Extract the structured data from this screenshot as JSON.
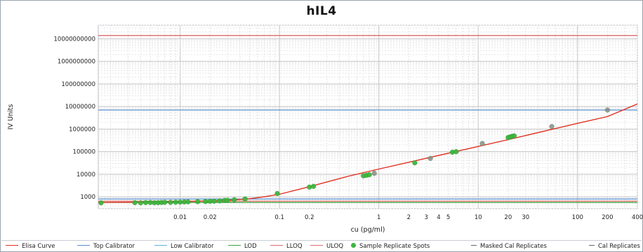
{
  "chart_data": {
    "type": "scatter",
    "title": "hIL4",
    "xlabel": "cu (pg/ml)",
    "ylabel": "IV Units",
    "x_scale": "log",
    "y_scale": "log",
    "xlim": [
      0.0015,
      400
    ],
    "ylim": [
      300,
      40000000000
    ],
    "grid": true,
    "legend_position": "bottom",
    "x_tick_labels": [
      "0.01",
      "0.02",
      "0.1",
      "0.2",
      "1",
      "2",
      "3",
      "4",
      "5",
      "10",
      "20",
      "30",
      "100",
      "200",
      "400"
    ],
    "x_tick_values": [
      0.01,
      0.02,
      0.1,
      0.2,
      1,
      2,
      3,
      4,
      5,
      10,
      20,
      30,
      100,
      200,
      400
    ],
    "y_tick_labels": [
      "1000",
      "10000",
      "100000",
      "1000000",
      "10000000",
      "100000000",
      "1000000000",
      "10000000000"
    ],
    "y_tick_values": [
      1000,
      10000,
      100000,
      1000000,
      10000000,
      100000000,
      1000000000,
      10000000000
    ],
    "series": [
      {
        "name": "Elisa Curve",
        "kind": "curve",
        "color": "#e03020",
        "x": [
          0.0015,
          0.005,
          0.01,
          0.02,
          0.035,
          0.05,
          0.07,
          0.1,
          0.2,
          0.5,
          1,
          2,
          5,
          10,
          20,
          50,
          100,
          200,
          400
        ],
        "y": [
          560,
          580,
          610,
          660,
          730,
          820,
          1000,
          1300,
          2800,
          8300,
          17000,
          34000,
          85000,
          170000,
          340000,
          880000,
          1800000,
          3600000,
          13000000
        ]
      },
      {
        "name": "Top Calibrator",
        "kind": "hline",
        "color": "#5a8ed0",
        "y": 7000000
      },
      {
        "name": "Low Calibrator",
        "kind": "hline",
        "color": "#5a8ed0",
        "y": 800
      },
      {
        "name": "LOD",
        "kind": "hline",
        "color": "#3aa33a",
        "y": 560
      },
      {
        "name": "LLOQ",
        "kind": "hline",
        "color": "#e06a6a",
        "y": 640
      },
      {
        "name": "ULOQ",
        "kind": "hline",
        "color": "#e06a6a",
        "y": 14000000000
      },
      {
        "name": "Sample Replicate Spots",
        "kind": "points",
        "color": "#3fb53f",
        "x": [
          0.0016,
          0.0035,
          0.004,
          0.0045,
          0.005,
          0.0055,
          0.006,
          0.0065,
          0.007,
          0.008,
          0.009,
          0.01,
          0.011,
          0.012,
          0.015,
          0.018,
          0.02,
          0.022,
          0.025,
          0.028,
          0.03,
          0.035,
          0.045,
          0.095,
          0.2,
          0.22,
          0.7,
          0.75,
          0.8,
          2.3,
          5.5,
          6,
          20,
          21,
          22,
          23
        ],
        "y": [
          540,
          550,
          540,
          555,
          560,
          545,
          550,
          560,
          570,
          565,
          575,
          580,
          590,
          600,
          610,
          620,
          630,
          640,
          660,
          690,
          700,
          740,
          800,
          1400,
          2700,
          2900,
          8500,
          9000,
          9500,
          32000,
          95000,
          100000,
          420000,
          450000,
          480000,
          500000
        ]
      },
      {
        "name": "Masked Cal Replicates",
        "kind": "points",
        "color": "#999999",
        "x": [],
        "y": []
      },
      {
        "name": "Cal Replicates",
        "kind": "points",
        "color": "#8a8a8a",
        "x": [
          0.9,
          3.3,
          11,
          55,
          200
        ],
        "y": [
          11000,
          50000,
          230000,
          1300000,
          7000000
        ]
      }
    ]
  },
  "legend": {
    "items": [
      {
        "label": "Elisa Curve",
        "color": "#e03020",
        "style": "line"
      },
      {
        "label": "Top Calibrator",
        "color": "#5a8ed0",
        "style": "line"
      },
      {
        "label": "Low Calibrator",
        "color": "#5ab4e0",
        "style": "line"
      },
      {
        "label": "LOD",
        "color": "#3aa33a",
        "style": "line"
      },
      {
        "label": "LLOQ",
        "color": "#e06a6a",
        "style": "line"
      },
      {
        "label": "ULOQ",
        "color": "#e06a6a",
        "style": "line"
      },
      {
        "label": "Sample Replicate Spots",
        "color": "#3fb53f",
        "style": "dot"
      },
      {
        "label": "Masked Cal Replicates",
        "color": "#666666",
        "style": "dash"
      },
      {
        "label": "Cal Replicates",
        "color": "#666666",
        "style": "dash"
      }
    ]
  }
}
